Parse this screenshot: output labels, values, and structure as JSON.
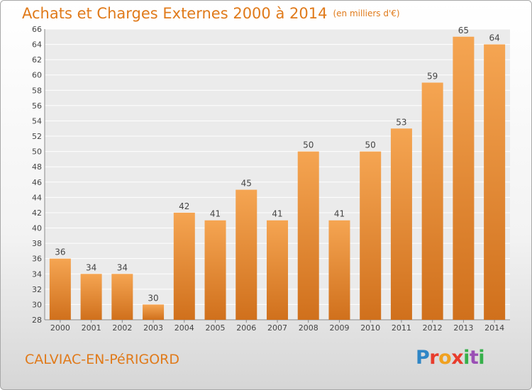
{
  "title": "Achats et Charges Externes 2000 à 2014",
  "unit": "(en milliers d'€)",
  "commune": "CALVIAC-EN-PéRIGORD",
  "brand": {
    "letters": [
      "P",
      "r",
      "o",
      "x",
      "i",
      "t",
      "i"
    ]
  },
  "colors": {
    "accent": "#e07a1a",
    "bar_top": "#f5a552",
    "bar_bottom": "#d0701c"
  },
  "chart_data": {
    "type": "bar",
    "categories": [
      "2000",
      "2001",
      "2002",
      "2003",
      "2004",
      "2005",
      "2006",
      "2007",
      "2008",
      "2009",
      "2010",
      "2011",
      "2012",
      "2013",
      "2014"
    ],
    "values": [
      36,
      34,
      34,
      30,
      42,
      41,
      45,
      41,
      50,
      41,
      50,
      53,
      59,
      65,
      64
    ],
    "title": "Achats et Charges Externes 2000 à 2014",
    "xlabel": "",
    "ylabel": "",
    "ylim": [
      28,
      66
    ],
    "yticks": [
      28,
      30,
      32,
      34,
      36,
      38,
      40,
      42,
      44,
      46,
      48,
      50,
      52,
      54,
      56,
      58,
      60,
      62,
      64,
      66
    ],
    "grid": true,
    "data_labels": true
  }
}
